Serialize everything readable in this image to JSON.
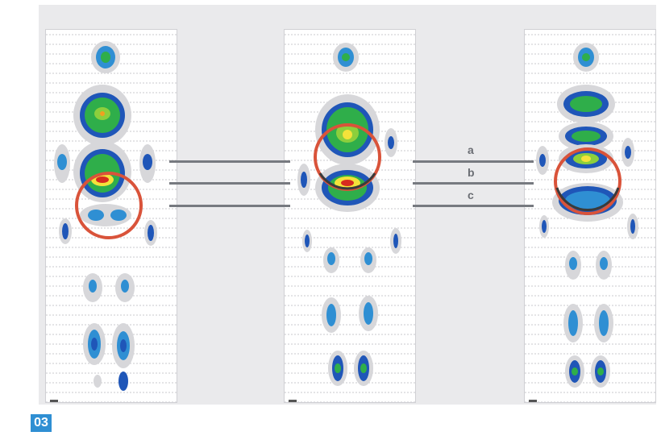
{
  "figure": {
    "badge": "03"
  },
  "scale": {
    "colors": [
      "#d62b1f",
      "#f0a020",
      "#f4e23a",
      "#8ccf3c",
      "#2fae4a",
      "#18a6c9",
      "#1f56b8",
      "#bdbdbd",
      "#e6e6e6"
    ]
  },
  "connectors": [
    {
      "label": "a"
    },
    {
      "label": "b"
    },
    {
      "label": "c"
    }
  ],
  "panels": [
    {
      "id": "left"
    },
    {
      "id": "middle"
    },
    {
      "id": "right"
    }
  ],
  "highlight_circles": {
    "stroke": "#d9533a",
    "stroke_inner": "#3a3a3a"
  }
}
